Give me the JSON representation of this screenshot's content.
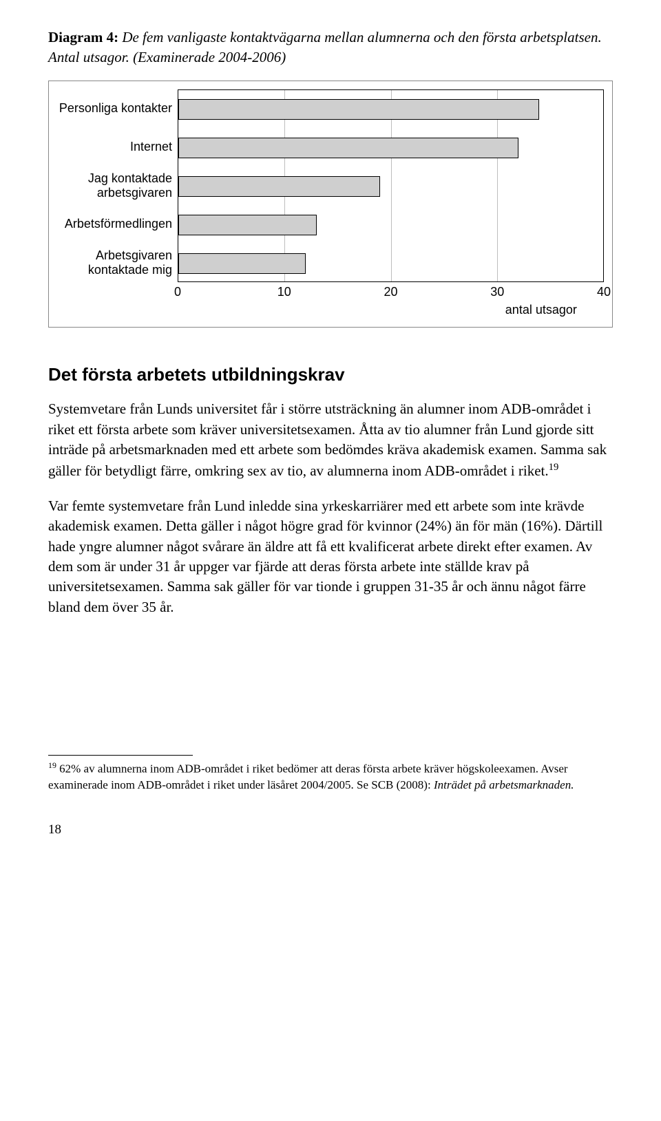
{
  "diagram": {
    "label": "Diagram 4:",
    "caption": "De fem vanligaste kontaktvägarna mellan alumnerna och den första arbetsplatsen. Antal utsagor. (Examinerade 2004-2006)"
  },
  "chart": {
    "type": "bar",
    "orientation": "horizontal",
    "xlim": [
      0,
      40
    ],
    "xtick_step": 10,
    "xticks": [
      0,
      10,
      20,
      30,
      40
    ],
    "xlabel": "antal utsagor",
    "bar_color": "#cfcfcf",
    "bar_border": "#000000",
    "grid_color": "#bdbdbd",
    "background_color": "#ffffff",
    "label_fontsize": 18,
    "tick_fontsize": 18,
    "categories": [
      "Personliga kontakter",
      "Internet",
      "Jag kontaktade arbetsgivaren",
      "Arbetsförmedlingen",
      "Arbetsgivaren kontaktade mig"
    ],
    "values": [
      34,
      32,
      19,
      13,
      12
    ]
  },
  "heading": "Det första arbetets utbildningskrav",
  "para1": "Systemvetare från Lunds universitet får i större utsträckning än alumner inom ADB-området i riket ett första arbete som kräver universitetsexamen. Åtta av tio alumner från Lund gjorde sitt inträde på arbetsmarknaden med ett arbete som bedömdes kräva akademisk examen. Samma sak gäller för betydligt färre, omkring sex av tio, av alumnerna inom ADB-området i riket.",
  "fnref1": "19",
  "para2": "Var femte systemvetare från Lund inledde sina yrkeskarriärer med ett arbete som inte krävde akademisk examen. Detta gäller i något högre grad för kvinnor (24%) än för män (16%). Därtill hade yngre alumner något svårare än äldre att få ett kvalificerat arbete direkt efter examen. Av dem som är under 31 år uppger var fjärde att deras första arbete inte ställde krav på universitetsexamen. Samma sak gäller för var tionde i gruppen 31-35 år och ännu något färre bland dem över 35 år.",
  "footnote": {
    "num": "19",
    "text_a": " 62% av alumnerna inom ADB-området i riket bedömer att deras första arbete kräver högskoleexamen. Avser examinerade inom ADB-området i riket under läsåret 2004/2005. Se SCB (2008): ",
    "text_italic": "Inträdet på arbetsmarknaden."
  },
  "page_number": "18"
}
